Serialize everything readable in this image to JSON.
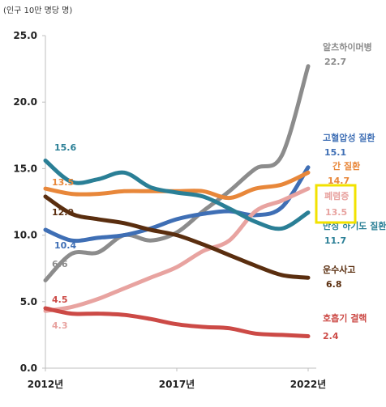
{
  "chart_data": {
    "type": "line",
    "unit_label": "(인구 10만 명당 명)",
    "x": [
      2012,
      2013,
      2014,
      2015,
      2016,
      2017,
      2018,
      2019,
      2020,
      2021,
      2022
    ],
    "x_tick_labels": [
      {
        "x": 2012,
        "label": "2012년"
      },
      {
        "x": 2017,
        "label": "2017년"
      },
      {
        "x": 2022,
        "label": "2022년"
      }
    ],
    "ylim": [
      0,
      25
    ],
    "y_ticks": [
      {
        "v": 0,
        "label": "0.0"
      },
      {
        "v": 5,
        "label": "5.0"
      },
      {
        "v": 10,
        "label": "10.0"
      },
      {
        "v": 15,
        "label": "15.0"
      },
      {
        "v": 20,
        "label": "20.0"
      },
      {
        "v": 25,
        "label": "25.0"
      }
    ],
    "grid": false,
    "series": [
      {
        "key": "alz",
        "name": "알츠하이머병",
        "color": "#8c8c8c",
        "values": [
          6.6,
          8.6,
          8.7,
          10.0,
          9.6,
          10.2,
          11.8,
          13.3,
          15.0,
          16.0,
          22.7
        ],
        "start_label": "6.6",
        "end_label": "22.7"
      },
      {
        "key": "hyp",
        "name": "고혈압성 질환",
        "color": "#3f6fb5",
        "values": [
          10.4,
          9.6,
          9.8,
          10.0,
          10.5,
          11.2,
          11.6,
          11.8,
          11.5,
          12.1,
          15.1
        ],
        "start_label": "10.4",
        "end_label": "15.1"
      },
      {
        "key": "liver",
        "name": "간 질환",
        "color": "#e8873a",
        "values": [
          13.5,
          13.1,
          13.1,
          13.3,
          13.3,
          13.3,
          13.3,
          12.8,
          13.5,
          13.8,
          14.7
        ],
        "start_label": "13.5",
        "end_label": "14.7"
      },
      {
        "key": "pneu",
        "name": "폐렴증",
        "color": "#e8a3a0",
        "values": [
          4.3,
          4.6,
          5.2,
          6.0,
          6.8,
          7.6,
          8.8,
          9.6,
          11.8,
          12.6,
          13.5
        ],
        "start_label": "4.3",
        "end_label": "13.5"
      },
      {
        "key": "clrd",
        "name": "만성 하기도 질환",
        "color": "#2a7f96",
        "values": [
          15.6,
          14.0,
          14.2,
          14.7,
          13.6,
          13.2,
          12.9,
          12.0,
          11.0,
          10.5,
          11.7
        ],
        "start_label": "15.6",
        "end_label": "11.7"
      },
      {
        "key": "traffic",
        "name": "운수사고",
        "color": "#5a2e0f",
        "values": [
          12.9,
          11.6,
          11.2,
          10.9,
          10.4,
          10.0,
          9.3,
          8.5,
          7.7,
          7.0,
          6.8
        ],
        "start_label": "12.9",
        "end_label": "6.8"
      },
      {
        "key": "tb",
        "name": "호흡기 결핵",
        "color": "#cc4a46",
        "values": [
          4.5,
          4.1,
          4.1,
          4.0,
          3.7,
          3.3,
          3.1,
          3.0,
          2.6,
          2.5,
          2.4
        ],
        "start_label": "4.5",
        "end_label": "2.4"
      }
    ],
    "highlight": {
      "series": "pneu",
      "style": "yellow box"
    }
  }
}
